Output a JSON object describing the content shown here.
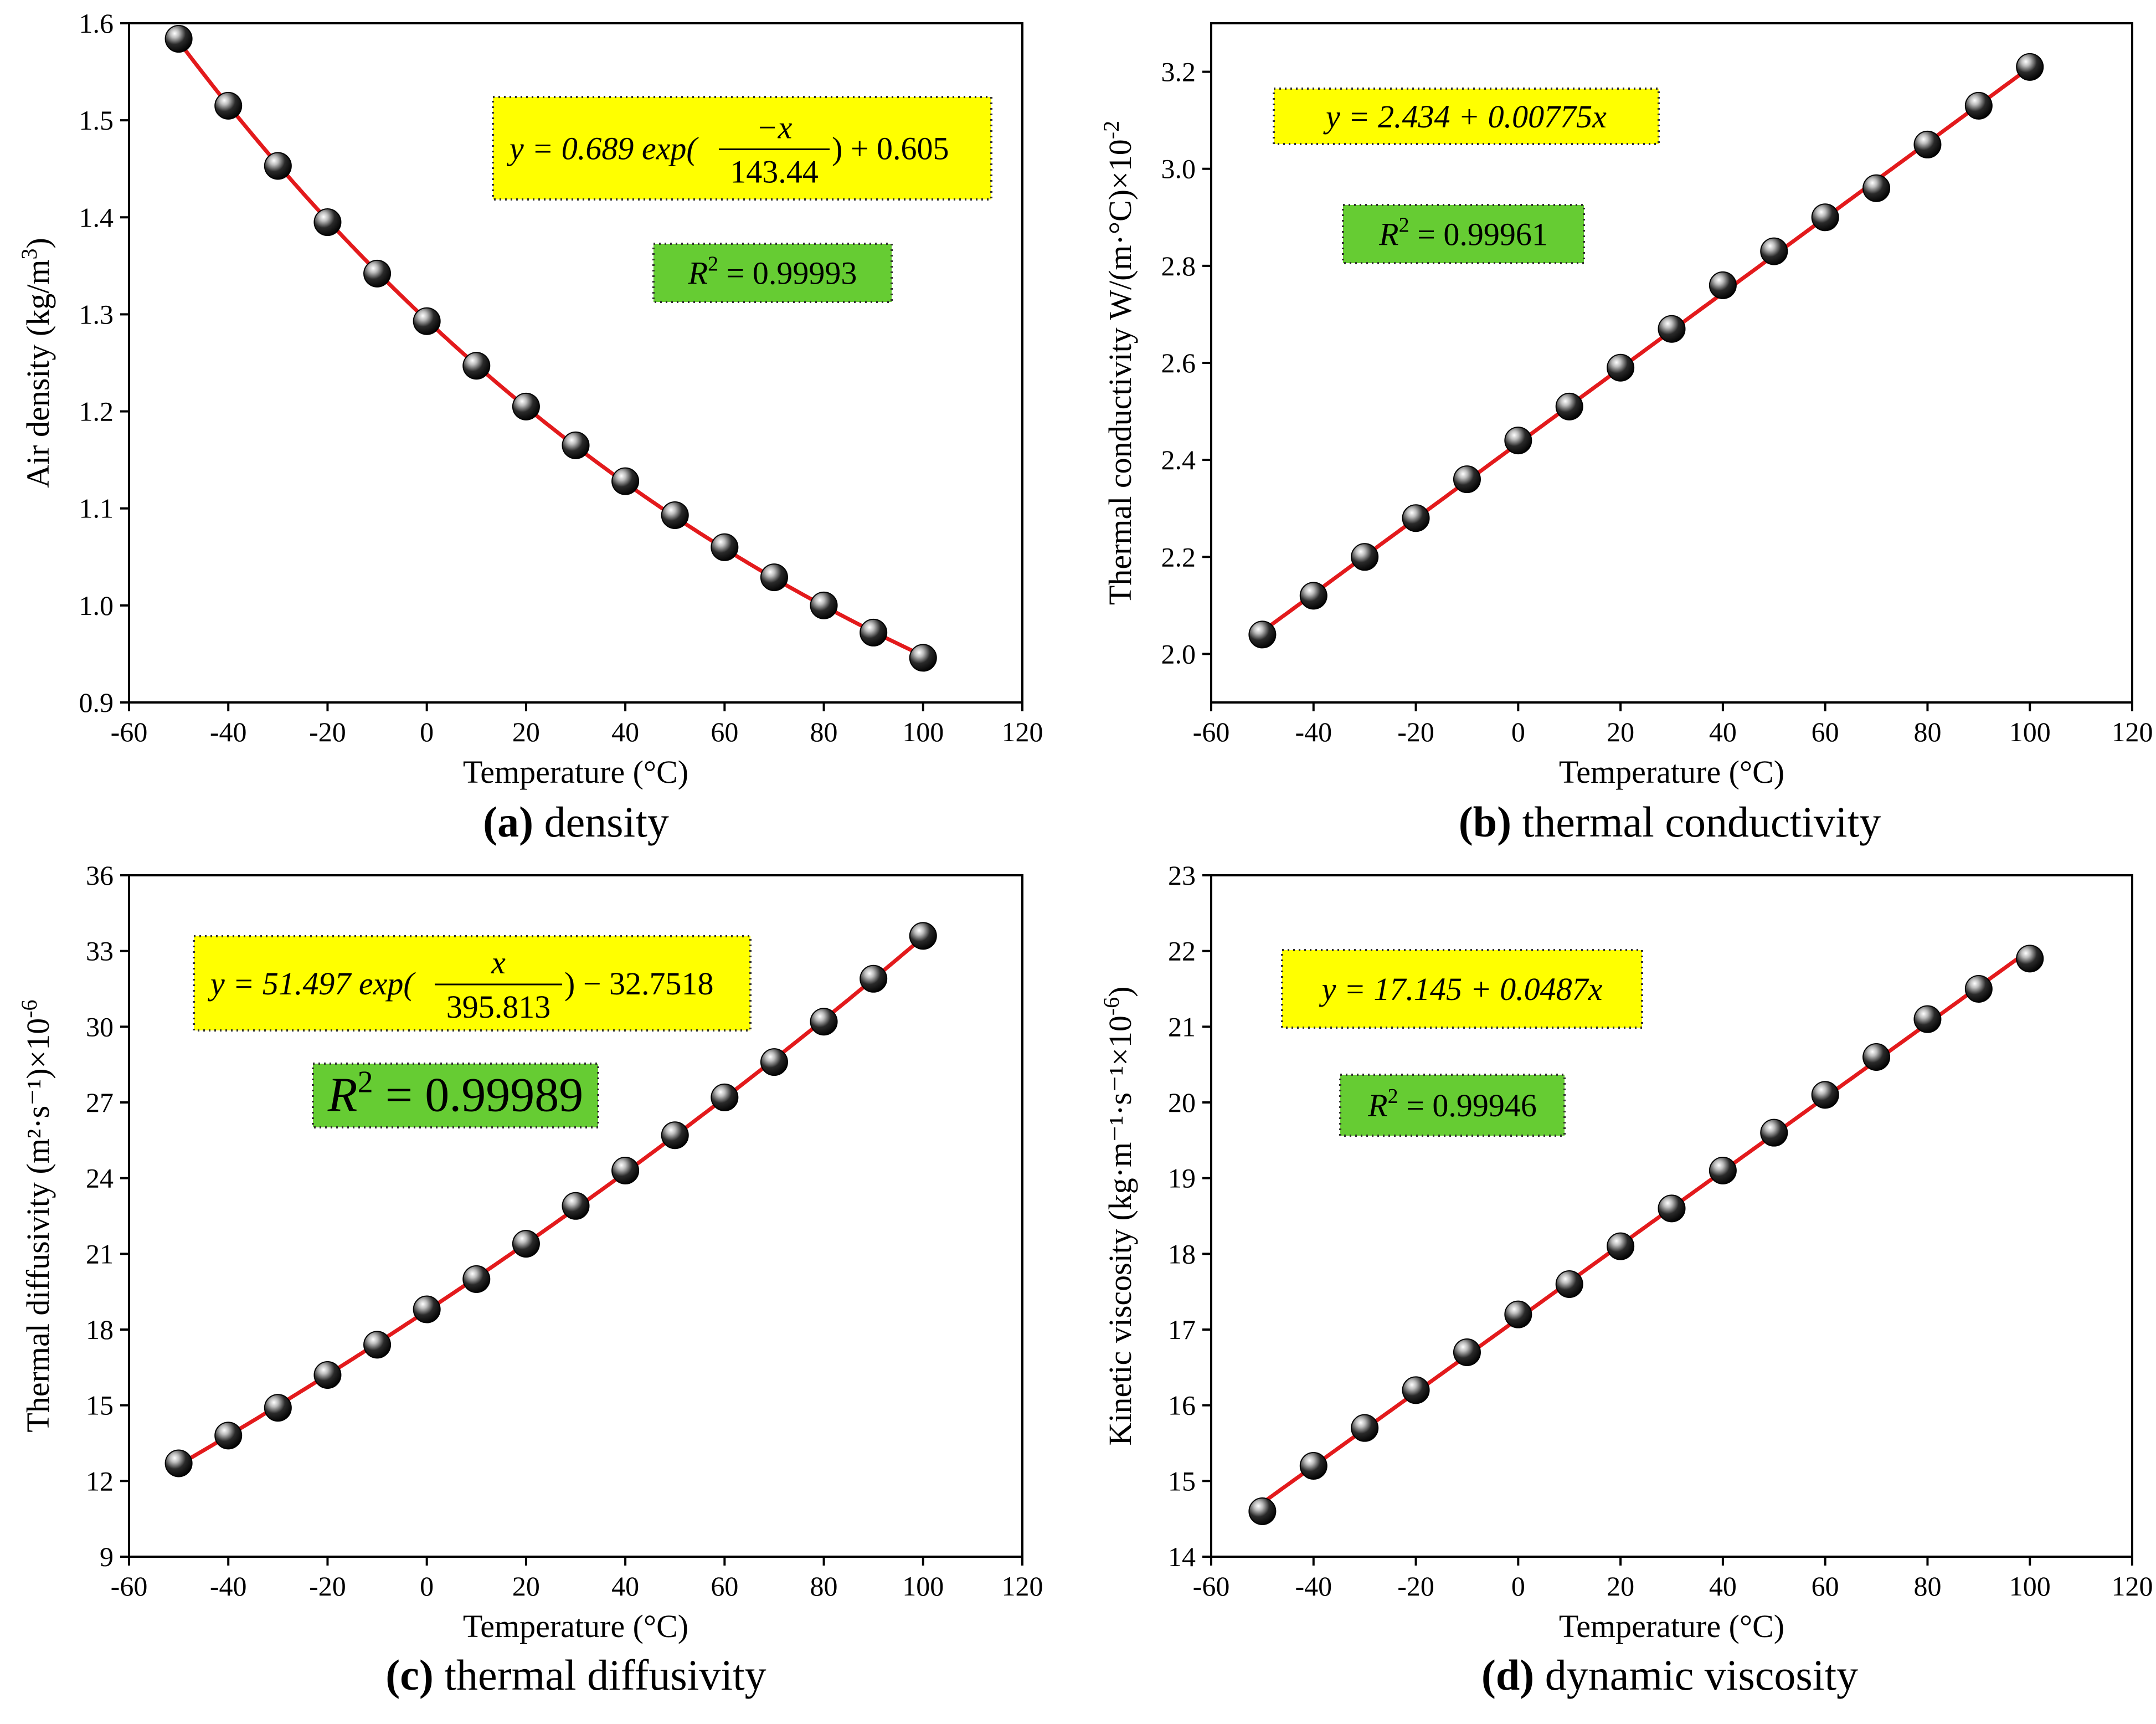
{
  "chart_data": [
    {
      "id": "a",
      "type": "scatter",
      "caption_letter": "(a)",
      "caption_text": "density",
      "xlabel": "Temperature (°C)",
      "ylabel": "Air density (kg/m",
      "ylabel_sup": "3",
      "ylabel_tail": ")",
      "xlim": [
        -60,
        120
      ],
      "ylim": [
        0.9,
        1.6
      ],
      "xticks": [
        -60,
        -40,
        -20,
        0,
        20,
        40,
        60,
        80,
        100,
        120
      ],
      "yticks": [
        0.9,
        1.0,
        1.1,
        1.2,
        1.3,
        1.4,
        1.5,
        1.6
      ],
      "ydecimals": 1,
      "x": [
        -50,
        -40,
        -30,
        -20,
        -10,
        0,
        10,
        20,
        30,
        40,
        50,
        60,
        70,
        80,
        90,
        100
      ],
      "y": [
        1.584,
        1.515,
        1.453,
        1.395,
        1.342,
        1.293,
        1.247,
        1.205,
        1.165,
        1.128,
        1.093,
        1.06,
        1.029,
        1.0,
        0.972,
        0.946
      ],
      "fit": {
        "kind": "exp",
        "a": 0.689,
        "t": -143.44,
        "c": 0.605
      },
      "equation": {
        "prefix": "y = 0.689 exp(",
        "num": "−x",
        "den": "143.44",
        "suffix": ") + 0.605"
      },
      "r2": {
        "label": "R",
        "sup": "2",
        "value": " = 0.99993"
      }
    },
    {
      "id": "b",
      "type": "scatter",
      "caption_letter": "(b)",
      "caption_text": "thermal conductivity",
      "xlabel": "Temperature (°C)",
      "ylabel": "Thermal conductivity W/(m·°C)×10",
      "ylabel_sup": "-2",
      "ylabel_tail": "",
      "xlim": [
        -60,
        120
      ],
      "ylim": [
        1.9,
        3.3
      ],
      "xticks": [
        -60,
        -40,
        -20,
        0,
        20,
        40,
        60,
        80,
        100,
        120
      ],
      "yticks": [
        2.0,
        2.2,
        2.4,
        2.6,
        2.8,
        3.0,
        3.2
      ],
      "ydecimals": 1,
      "x": [
        -50,
        -40,
        -30,
        -20,
        -10,
        0,
        10,
        20,
        30,
        40,
        50,
        60,
        70,
        80,
        90,
        100
      ],
      "y": [
        2.04,
        2.12,
        2.2,
        2.28,
        2.36,
        2.44,
        2.51,
        2.59,
        2.67,
        2.76,
        2.83,
        2.9,
        2.96,
        3.05,
        3.13,
        3.21
      ],
      "fit": {
        "kind": "linear",
        "a": 2.434,
        "b": 0.00775
      },
      "equation": {
        "text": "y = 2.434 + 0.00775x"
      },
      "r2": {
        "label": "R",
        "sup": "2",
        "value": " = 0.99961"
      }
    },
    {
      "id": "c",
      "type": "scatter",
      "caption_letter": "(c)",
      "caption_text": "thermal diffusivity",
      "xlabel": "Temperature (°C)",
      "ylabel": "Thermal diffusivity (m²·s⁻¹)×10",
      "ylabel_sup": "-6",
      "ylabel_tail": "",
      "xlim": [
        -60,
        120
      ],
      "ylim": [
        9,
        36
      ],
      "xticks": [
        -60,
        -40,
        -20,
        0,
        20,
        40,
        60,
        80,
        100,
        120
      ],
      "yticks": [
        9,
        12,
        15,
        18,
        21,
        24,
        27,
        30,
        33,
        36
      ],
      "ydecimals": 0,
      "x": [
        -50,
        -40,
        -30,
        -20,
        -10,
        0,
        10,
        20,
        30,
        40,
        50,
        60,
        70,
        80,
        90,
        100
      ],
      "y": [
        12.7,
        13.8,
        14.9,
        16.2,
        17.4,
        18.8,
        20.0,
        21.4,
        22.9,
        24.3,
        25.7,
        27.2,
        28.6,
        30.2,
        31.9,
        33.6
      ],
      "fit": {
        "kind": "exp",
        "a": 51.497,
        "t": 395.813,
        "c": -32.7518
      },
      "equation": {
        "prefix": "y = 51.497 exp(",
        "num": "x",
        "den": "395.813",
        "suffix": ") − 32.7518"
      },
      "r2": {
        "label": "R",
        "sup": "2",
        "value": " = 0.99989"
      }
    },
    {
      "id": "d",
      "type": "scatter",
      "caption_letter": "(d)",
      "caption_text": "dynamic viscosity",
      "xlabel": "Temperature (°C)",
      "ylabel": "Kinetic viscosity (kg·m⁻¹·s⁻¹×10",
      "ylabel_sup": "-6",
      "ylabel_tail": ")",
      "xlim": [
        -60,
        120
      ],
      "ylim": [
        14,
        23
      ],
      "xticks": [
        -60,
        -40,
        -20,
        0,
        20,
        40,
        60,
        80,
        100,
        120
      ],
      "yticks": [
        14,
        15,
        16,
        17,
        18,
        19,
        20,
        21,
        22,
        23
      ],
      "ydecimals": 0,
      "x": [
        -50,
        -40,
        -30,
        -20,
        -10,
        0,
        10,
        20,
        30,
        40,
        50,
        60,
        70,
        80,
        90,
        100
      ],
      "y": [
        14.6,
        15.2,
        15.7,
        16.2,
        16.7,
        17.2,
        17.6,
        18.1,
        18.6,
        19.1,
        19.6,
        20.1,
        20.6,
        21.1,
        21.5,
        21.9
      ],
      "fit": {
        "kind": "linear",
        "a": 17.145,
        "b": 0.0487
      },
      "equation": {
        "text": "y = 17.145 + 0.0487x"
      },
      "r2": {
        "label": "R",
        "sup": "2",
        "value": " = 0.99946"
      }
    }
  ]
}
